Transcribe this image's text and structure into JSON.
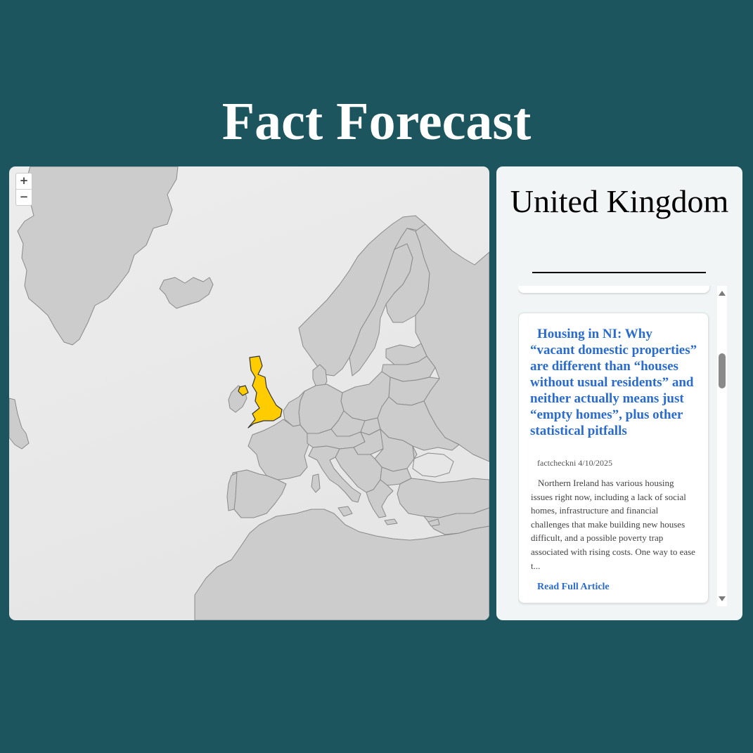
{
  "site": {
    "title": "Fact Forecast"
  },
  "map": {
    "zoom_in_label": "+",
    "zoom_out_label": "−",
    "selected_country": "United Kingdom",
    "colors": {
      "land": "#cccccc",
      "border": "#8a8a8a",
      "selected": "#ffcc00",
      "selected_border": "#333333",
      "water": "#e6e6e6"
    }
  },
  "panel": {
    "country": "United Kingdom",
    "articles": [
      {
        "title": "Housing in NI: Why “vacant domestic properties” are different than “houses without usual residents” and neither actually means just “empty homes”, plus other statistical pitfalls",
        "source": "factcheckni",
        "date": "4/10/2025",
        "excerpt": "Northern Ireland has various housing issues right now, including a lack of social homes, infrastructure and financial challenges that make building new houses difficult, and a possible poverty trap associated with rising costs. One way to ease t...",
        "link_label": "Read Full Article"
      }
    ]
  },
  "colors": {
    "background": "#1c555d",
    "link": "#2a6bcf"
  }
}
